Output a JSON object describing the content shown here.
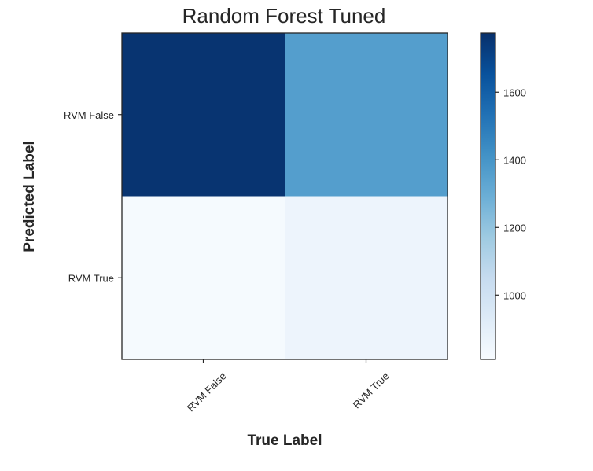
{
  "chart_data": {
    "type": "heatmap",
    "title": "Random Forest Tuned",
    "xlabel": "True Label",
    "ylabel": "Predicted Label",
    "x_categories": [
      "RVM False",
      "RVM True"
    ],
    "y_categories": [
      "RVM False",
      "RVM True"
    ],
    "values": [
      [
        1760,
        1360
      ],
      [
        820,
        860
      ]
    ],
    "colormap": "Blues",
    "colorbar": {
      "range": [
        810,
        1775
      ],
      "ticks": [
        1000,
        1200,
        1400,
        1600
      ]
    },
    "colors": {
      "dark": "#08306b",
      "light": "#f7fbff"
    },
    "grid": false
  }
}
